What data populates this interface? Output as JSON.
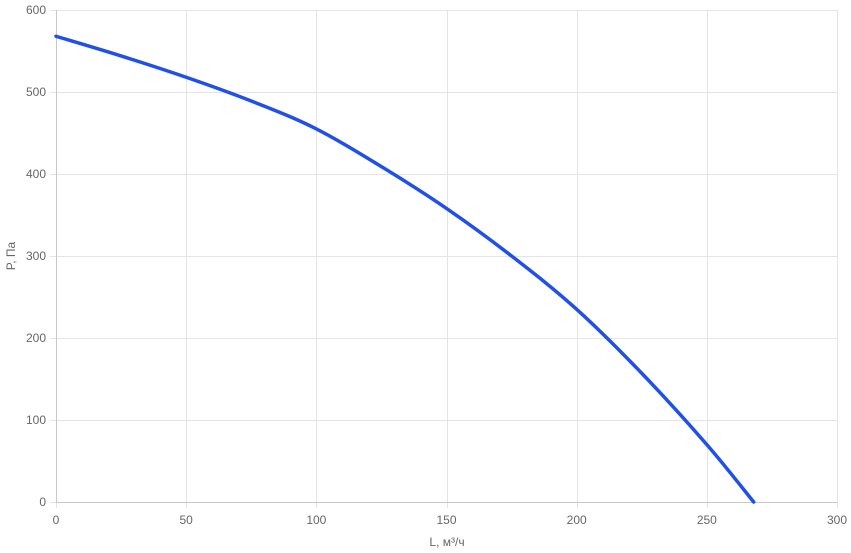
{
  "chart_data": {
    "type": "line",
    "title": "",
    "xlabel": "L, м³/ч",
    "ylabel": "P, Па",
    "xlim": [
      0,
      300
    ],
    "ylim": [
      0,
      600
    ],
    "x_ticks": [
      0,
      50,
      100,
      150,
      200,
      250,
      300
    ],
    "y_ticks": [
      0,
      100,
      200,
      300,
      400,
      500,
      600
    ],
    "grid": true,
    "legend": "none",
    "series": [
      {
        "color": "#2050e8",
        "x": [
          0,
          25,
          50,
          75,
          100,
          125,
          150,
          175,
          200,
          225,
          250,
          268
        ],
        "y": [
          568,
          544,
          518,
          489,
          455,
          409,
          358,
          300,
          235,
          157,
          70,
          0
        ]
      }
    ]
  }
}
